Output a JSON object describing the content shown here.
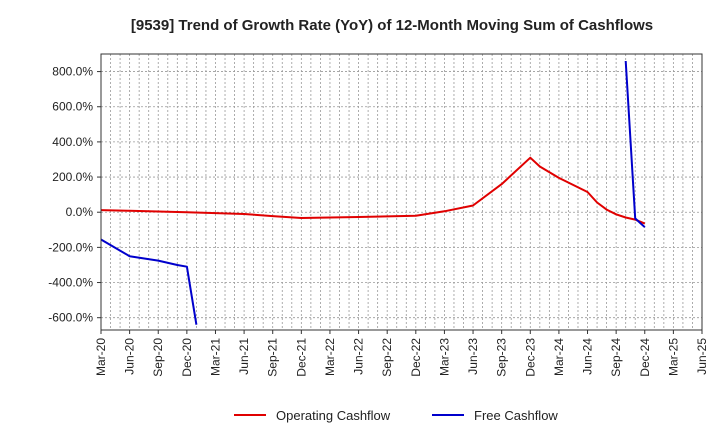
{
  "chart_data": {
    "type": "line",
    "title": "[9539]  Trend of Growth Rate (YoY) of 12-Month Moving Sum of Cashflows",
    "xlabel": "",
    "ylabel": "",
    "x_ticks": [
      "Mar-20",
      "Jun-20",
      "Sep-20",
      "Dec-20",
      "Mar-21",
      "Jun-21",
      "Sep-21",
      "Dec-21",
      "Mar-22",
      "Jun-22",
      "Sep-22",
      "Dec-22",
      "Mar-23",
      "Jun-23",
      "Sep-23",
      "Dec-23",
      "Mar-24",
      "Jun-24",
      "Sep-24",
      "Dec-24",
      "Mar-25",
      "Jun-25"
    ],
    "y_ticks": [
      800,
      600,
      400,
      200,
      0,
      -200,
      -400,
      -600
    ],
    "y_tick_labels": [
      "800.0%",
      "600.0%",
      "400.0%",
      "200.0%",
      "0.0%",
      "-200.0%",
      "-400.0%",
      "-600.0%"
    ],
    "ylim": [
      -670,
      900
    ],
    "grid": true,
    "legend_position": "bottom-center",
    "series": [
      {
        "name": "Operating Cashflow",
        "color": "#e00000",
        "points": [
          [
            "Mar-20",
            12
          ],
          [
            "Jun-20",
            8
          ],
          [
            "Sep-20",
            4
          ],
          [
            "Dec-20",
            0
          ],
          [
            "Mar-21",
            -5
          ],
          [
            "Jun-21",
            -10
          ],
          [
            "Sep-21",
            -22
          ],
          [
            "Dec-21",
            -33
          ],
          [
            "Mar-22",
            -30
          ],
          [
            "Jun-22",
            -27
          ],
          [
            "Sep-22",
            -24
          ],
          [
            "Dec-22",
            -20
          ],
          [
            "Mar-23",
            5
          ],
          [
            "Jun-23",
            38
          ],
          [
            "Sep-23",
            160
          ],
          [
            "Dec-23",
            310
          ],
          [
            "Jan-24",
            260
          ],
          [
            "Mar-24",
            195
          ],
          [
            "Jun-24",
            115
          ],
          [
            "Jul-24",
            55
          ],
          [
            "Aug-24",
            15
          ],
          [
            "Sep-24",
            -12
          ],
          [
            "Oct-24",
            -30
          ],
          [
            "Nov-24",
            -42
          ],
          [
            "Dec-24",
            -65
          ]
        ]
      },
      {
        "name": "Free Cashflow",
        "color": "#0000cc",
        "segments": [
          [
            [
              "Mar-20",
              -155
            ],
            [
              "Jun-20",
              -250
            ],
            [
              "Sep-20",
              -275
            ],
            [
              "Nov-20",
              -300
            ],
            [
              "Dec-20",
              -310
            ],
            [
              "Jan-21",
              -640
            ]
          ],
          [
            [
              "Oct-24",
              860
            ],
            [
              "Nov-24",
              -35
            ],
            [
              "Dec-24",
              -85
            ]
          ]
        ]
      }
    ]
  }
}
